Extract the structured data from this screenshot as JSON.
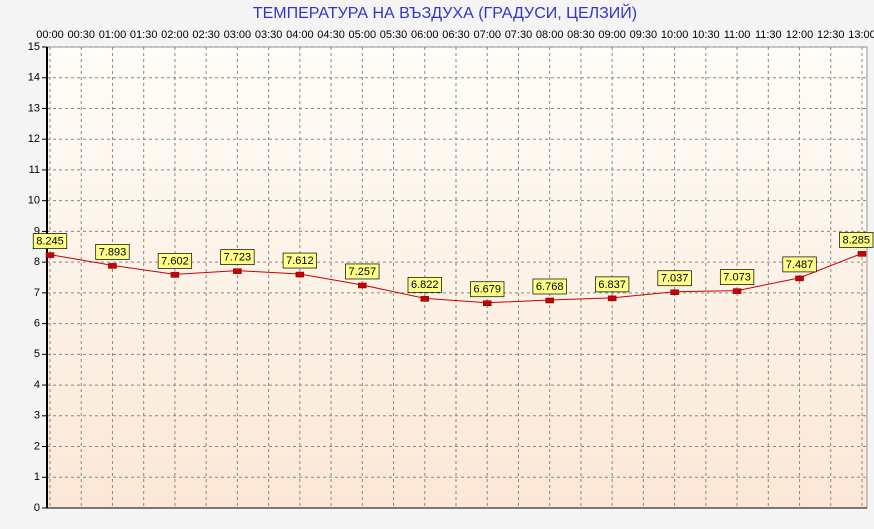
{
  "chart_data": {
    "type": "line",
    "title": "ТЕМПЕРАТУРА НА ВЪЗДУХА  (ГРАДУСИ, ЦЕЛЗИЙ)",
    "x": [
      0,
      1,
      2,
      3,
      4,
      5,
      6,
      7,
      8,
      9,
      10,
      11,
      12,
      13
    ],
    "series": [
      {
        "color": "#cc0000",
        "values": [
          8.245,
          7.893,
          7.602,
          7.723,
          7.612,
          7.257,
          6.822,
          6.679,
          6.768,
          6.837,
          7.037,
          7.073,
          7.487,
          8.285
        ]
      }
    ],
    "xlim": [
      0,
      13
    ],
    "xticks": [
      {
        "value": 0,
        "label": "00:00"
      },
      {
        "value": 0.5,
        "label": "00:30"
      },
      {
        "value": 1,
        "label": "01:00"
      },
      {
        "value": 1.5,
        "label": "01:30"
      },
      {
        "value": 2,
        "label": "02:00"
      },
      {
        "value": 2.5,
        "label": "02:30"
      },
      {
        "value": 3,
        "label": "03:00"
      },
      {
        "value": 3.5,
        "label": "03:30"
      },
      {
        "value": 4,
        "label": "04:00"
      },
      {
        "value": 4.5,
        "label": "04:30"
      },
      {
        "value": 5,
        "label": "05:00"
      },
      {
        "value": 5.5,
        "label": "05:30"
      },
      {
        "value": 6,
        "label": "06:00"
      },
      {
        "value": 6.5,
        "label": "06:30"
      },
      {
        "value": 7,
        "label": "07:00"
      },
      {
        "value": 7.5,
        "label": "07:30"
      },
      {
        "value": 8,
        "label": "08:00"
      },
      {
        "value": 8.5,
        "label": "08:30"
      },
      {
        "value": 9,
        "label": "09:00"
      },
      {
        "value": 9.5,
        "label": "09:30"
      },
      {
        "value": 10,
        "label": "10:00"
      },
      {
        "value": 10.5,
        "label": "10:30"
      },
      {
        "value": 11,
        "label": "11:00"
      },
      {
        "value": 11.5,
        "label": "11:30"
      },
      {
        "value": 12,
        "label": "12:00"
      },
      {
        "value": 12.5,
        "label": "12:30"
      },
      {
        "value": 13,
        "label": "13:00"
      }
    ],
    "ylim": [
      0,
      15
    ],
    "yticks": [
      0,
      1,
      2,
      3,
      4,
      5,
      6,
      7,
      8,
      9,
      10,
      11,
      12,
      13,
      14,
      15
    ],
    "grid": true
  }
}
